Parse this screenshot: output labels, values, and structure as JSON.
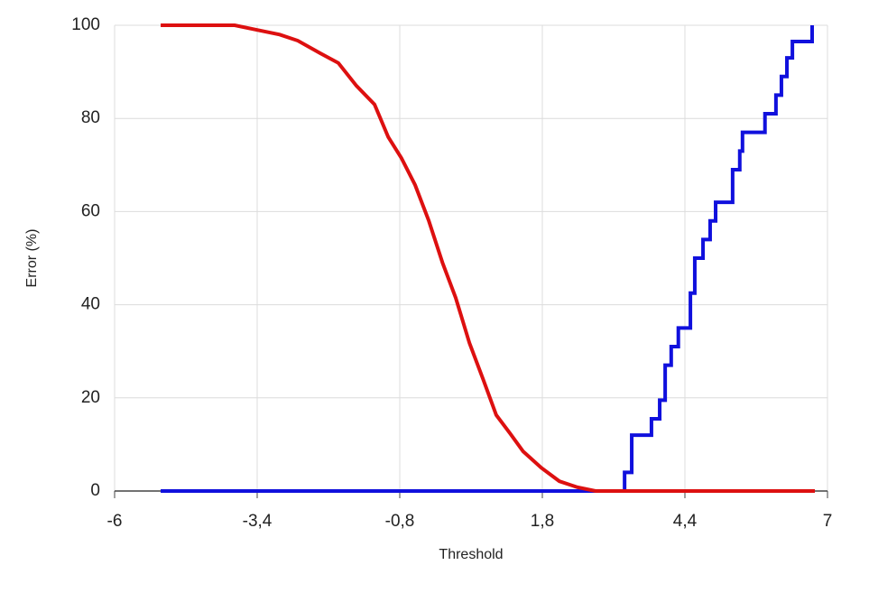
{
  "chart_data": {
    "type": "line",
    "xlabel": "Threshold",
    "ylabel": "Error (%)",
    "xlim": [
      -6,
      7
    ],
    "ylim": [
      0,
      100
    ],
    "xticks": [
      -6,
      {
        "value": -3.4,
        "label": "-3,4"
      },
      {
        "value": -0.8,
        "label": "-0,8"
      },
      {
        "value": 1.8,
        "label": "1,8"
      },
      {
        "value": 4.4,
        "label": "4,4"
      },
      7
    ],
    "yticks": [
      0,
      20,
      40,
      60,
      80,
      100
    ],
    "grid": true,
    "series": [
      {
        "color": "#1010dd",
        "x": [
          -5.16,
          3.3,
          3.3,
          3.43,
          3.43,
          3.79,
          3.79,
          3.94,
          3.94,
          4.04,
          4.04,
          4.15,
          4.15,
          4.28,
          4.28,
          4.5,
          4.5,
          4.58,
          4.58,
          4.73,
          4.73,
          4.86,
          4.86,
          4.96,
          4.96,
          5.27,
          5.27,
          5.4,
          5.4,
          5.45,
          5.45,
          5.86,
          5.86,
          6.06,
          6.06,
          6.16,
          6.16,
          6.26,
          6.26,
          6.36,
          6.36,
          6.72,
          6.72
        ],
        "values": [
          0,
          0,
          4,
          4,
          12,
          12,
          15.5,
          15.5,
          19.5,
          19.5,
          27,
          27,
          31,
          31,
          35,
          35,
          42.5,
          42.5,
          50,
          50,
          54,
          54,
          58,
          58,
          62,
          62,
          69,
          69,
          73,
          73,
          77,
          77,
          81,
          81,
          85,
          85,
          89,
          89,
          93,
          93,
          96.5,
          96.5,
          100
        ]
      },
      {
        "color": "#dd1010",
        "x": [
          -5.16,
          -3.81,
          -3.4,
          -2.99,
          -2.66,
          -2.25,
          -1.92,
          -1.59,
          -1.26,
          -1.01,
          -0.77,
          -0.52,
          -0.27,
          -0.02,
          0.22,
          0.47,
          0.72,
          0.96,
          1.21,
          1.45,
          1.78,
          2.11,
          2.44,
          2.77,
          6.77
        ],
        "values": [
          100,
          100,
          99,
          98,
          96.7,
          94,
          91.9,
          87,
          83,
          76,
          71.5,
          65.7,
          58,
          49,
          41.5,
          31.8,
          24,
          16.3,
          12.4,
          8.5,
          5,
          2.1,
          0.8,
          0,
          0
        ]
      }
    ]
  }
}
